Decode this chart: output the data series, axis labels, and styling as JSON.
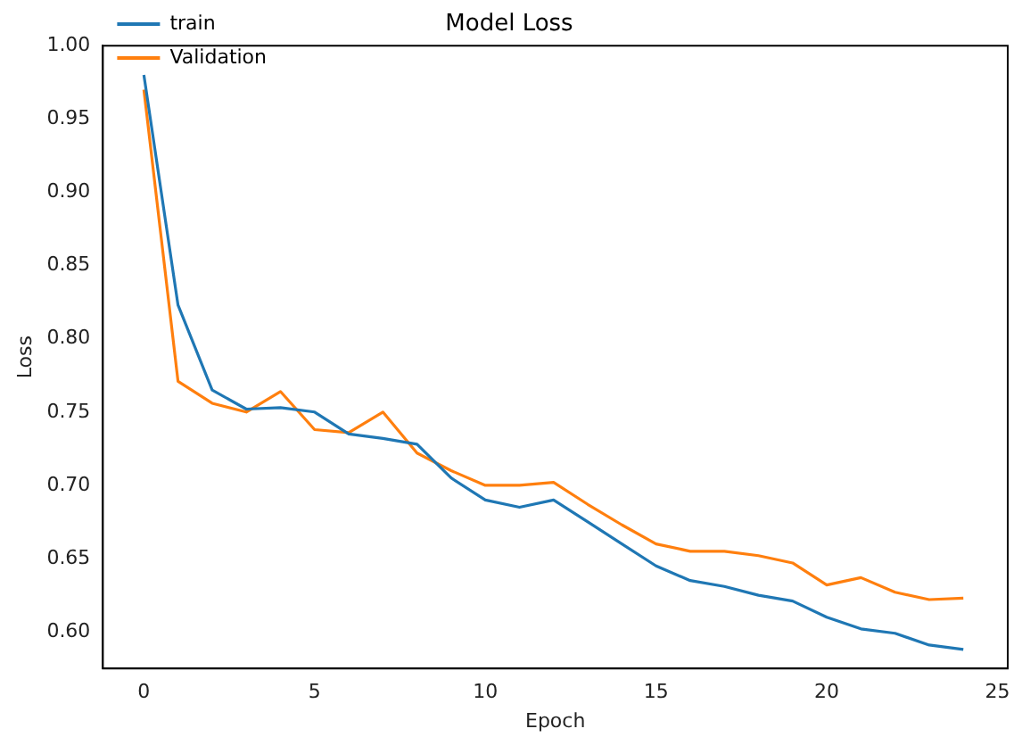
{
  "chart_data": {
    "type": "line",
    "title": "Model Loss",
    "xlabel": "Epoch",
    "ylabel": "Loss",
    "x": [
      0,
      1,
      2,
      3,
      4,
      5,
      6,
      7,
      8,
      9,
      10,
      11,
      12,
      13,
      14,
      15,
      16,
      17,
      18,
      19,
      20,
      21,
      22,
      23,
      24
    ],
    "series": [
      {
        "name": "train",
        "color": "#1f77b4",
        "values": [
          0.98,
          0.823,
          0.765,
          0.752,
          0.753,
          0.75,
          0.735,
          0.732,
          0.728,
          0.705,
          0.69,
          0.685,
          0.69,
          0.675,
          0.66,
          0.645,
          0.635,
          0.631,
          0.625,
          0.621,
          0.61,
          0.602,
          0.599,
          0.591,
          0.588
        ]
      },
      {
        "name": "Validation",
        "color": "#ff7f0e",
        "values": [
          0.97,
          0.771,
          0.756,
          0.75,
          0.764,
          0.738,
          0.736,
          0.75,
          0.722,
          0.71,
          0.7,
          0.7,
          0.702,
          0.687,
          0.673,
          0.66,
          0.655,
          0.655,
          0.652,
          0.647,
          0.632,
          0.637,
          0.627,
          0.622,
          0.623
        ]
      }
    ],
    "xlim": [
      -1.2,
      25.3
    ],
    "xticks": [
      0,
      5,
      10,
      15,
      20,
      25
    ],
    "ylim": [
      0.575,
      1.0
    ],
    "yticks": [
      {
        "value": 0.6,
        "label": "0.60"
      },
      {
        "value": 0.65,
        "label": "0.65"
      },
      {
        "value": 0.7,
        "label": "0.70"
      },
      {
        "value": 0.75,
        "label": "0.75"
      },
      {
        "value": 0.8,
        "label": "0.80"
      },
      {
        "value": 0.85,
        "label": "0.85"
      },
      {
        "value": 0.9,
        "label": "0.90"
      },
      {
        "value": 0.95,
        "label": "0.95"
      },
      {
        "value": 1.0,
        "label": "1.00"
      }
    ],
    "grid": false,
    "legend": "top left",
    "marker": "none",
    "line_style": "solid"
  }
}
